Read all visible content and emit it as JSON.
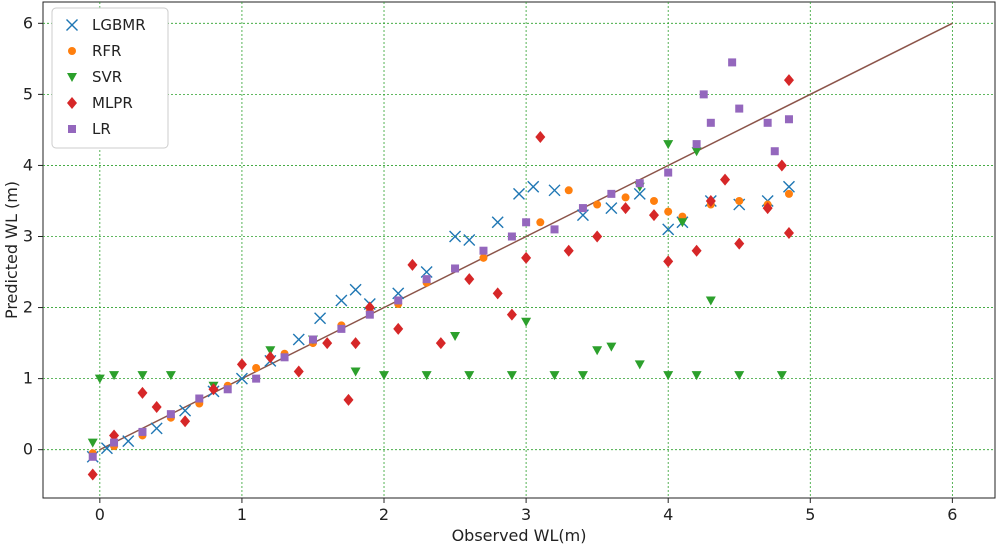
{
  "chart_data": {
    "type": "scatter",
    "title": "",
    "xlabel": "Observed WL(m)",
    "ylabel": "Predicted WL (m)",
    "xlim": [
      -0.4,
      6.3
    ],
    "ylim": [
      -0.68,
      6.3
    ],
    "xticks": [
      0,
      1,
      2,
      3,
      4,
      5,
      6
    ],
    "yticks": [
      0,
      1,
      2,
      3,
      4,
      5,
      6
    ],
    "grid": true,
    "grid_color": "#2ca02c",
    "legend_position": "top-left",
    "reference_line": {
      "from": [
        0,
        0
      ],
      "to": [
        6,
        6
      ],
      "color": "#8c564b"
    },
    "series": [
      {
        "name": "LGBMR",
        "marker": "x",
        "color": "#1f77b4",
        "points": [
          [
            -0.05,
            -0.1
          ],
          [
            0.05,
            0.02
          ],
          [
            0.2,
            0.12
          ],
          [
            0.4,
            0.3
          ],
          [
            0.6,
            0.55
          ],
          [
            0.8,
            0.82
          ],
          [
            1.0,
            1.0
          ],
          [
            1.2,
            1.25
          ],
          [
            1.4,
            1.55
          ],
          [
            1.55,
            1.85
          ],
          [
            1.7,
            2.1
          ],
          [
            1.8,
            2.25
          ],
          [
            1.9,
            2.05
          ],
          [
            2.1,
            2.2
          ],
          [
            2.3,
            2.5
          ],
          [
            2.5,
            3.0
          ],
          [
            2.6,
            2.95
          ],
          [
            2.8,
            3.2
          ],
          [
            2.95,
            3.6
          ],
          [
            3.05,
            3.7
          ],
          [
            3.2,
            3.65
          ],
          [
            3.4,
            3.3
          ],
          [
            3.6,
            3.4
          ],
          [
            3.8,
            3.6
          ],
          [
            4.0,
            3.1
          ],
          [
            4.1,
            3.2
          ],
          [
            4.3,
            3.5
          ],
          [
            4.5,
            3.45
          ],
          [
            4.7,
            3.5
          ],
          [
            4.85,
            3.7
          ]
        ]
      },
      {
        "name": "RFR",
        "marker": "circle",
        "color": "#ff7f0e",
        "points": [
          [
            -0.05,
            -0.05
          ],
          [
            0.1,
            0.05
          ],
          [
            0.3,
            0.2
          ],
          [
            0.5,
            0.45
          ],
          [
            0.7,
            0.65
          ],
          [
            0.9,
            0.9
          ],
          [
            1.1,
            1.15
          ],
          [
            1.3,
            1.35
          ],
          [
            1.5,
            1.5
          ],
          [
            1.7,
            1.75
          ],
          [
            1.9,
            1.95
          ],
          [
            2.1,
            2.05
          ],
          [
            2.3,
            2.35
          ],
          [
            2.5,
            2.55
          ],
          [
            2.7,
            2.7
          ],
          [
            2.9,
            3.0
          ],
          [
            3.1,
            3.2
          ],
          [
            3.3,
            3.65
          ],
          [
            3.5,
            3.45
          ],
          [
            3.7,
            3.55
          ],
          [
            3.9,
            3.5
          ],
          [
            4.0,
            3.35
          ],
          [
            4.1,
            3.28
          ],
          [
            4.3,
            3.45
          ],
          [
            4.5,
            3.5
          ],
          [
            4.7,
            3.45
          ],
          [
            4.85,
            3.6
          ]
        ]
      },
      {
        "name": "SVR",
        "marker": "triangle-down",
        "color": "#2ca02c",
        "points": [
          [
            -0.05,
            0.1
          ],
          [
            0.0,
            1.0
          ],
          [
            0.1,
            1.05
          ],
          [
            0.3,
            1.05
          ],
          [
            0.5,
            1.05
          ],
          [
            0.8,
            0.9
          ],
          [
            1.2,
            1.4
          ],
          [
            1.5,
            1.55
          ],
          [
            1.8,
            1.1
          ],
          [
            2.0,
            1.05
          ],
          [
            2.3,
            1.05
          ],
          [
            2.6,
            1.05
          ],
          [
            2.9,
            1.05
          ],
          [
            3.2,
            1.05
          ],
          [
            3.4,
            1.05
          ],
          [
            3.5,
            1.4
          ],
          [
            3.6,
            1.45
          ],
          [
            3.8,
            1.2
          ],
          [
            4.0,
            1.05
          ],
          [
            4.2,
            1.05
          ],
          [
            4.5,
            1.05
          ],
          [
            4.8,
            1.05
          ],
          [
            2.5,
            1.6
          ],
          [
            3.0,
            1.8
          ],
          [
            3.8,
            3.7
          ],
          [
            4.0,
            4.3
          ],
          [
            4.2,
            4.2
          ],
          [
            4.3,
            2.1
          ],
          [
            4.1,
            3.2
          ]
        ]
      },
      {
        "name": "MLPR",
        "marker": "diamond",
        "color": "#d62728",
        "points": [
          [
            -0.05,
            -0.35
          ],
          [
            0.1,
            0.2
          ],
          [
            0.3,
            0.8
          ],
          [
            0.4,
            0.6
          ],
          [
            0.6,
            0.4
          ],
          [
            0.8,
            0.85
          ],
          [
            1.0,
            1.2
          ],
          [
            1.2,
            1.3
          ],
          [
            1.4,
            1.1
          ],
          [
            1.6,
            1.5
          ],
          [
            1.75,
            0.7
          ],
          [
            1.8,
            1.5
          ],
          [
            1.9,
            2.0
          ],
          [
            2.1,
            1.7
          ],
          [
            2.2,
            2.6
          ],
          [
            2.4,
            1.5
          ],
          [
            2.6,
            2.4
          ],
          [
            2.8,
            2.2
          ],
          [
            2.9,
            1.9
          ],
          [
            3.0,
            2.7
          ],
          [
            3.1,
            4.4
          ],
          [
            3.3,
            2.8
          ],
          [
            3.5,
            3.0
          ],
          [
            3.7,
            3.4
          ],
          [
            3.9,
            3.3
          ],
          [
            4.0,
            2.65
          ],
          [
            4.2,
            2.8
          ],
          [
            4.3,
            3.5
          ],
          [
            4.4,
            3.8
          ],
          [
            4.5,
            2.9
          ],
          [
            4.7,
            3.4
          ],
          [
            4.85,
            3.05
          ],
          [
            4.85,
            5.2
          ],
          [
            4.8,
            4.0
          ]
        ]
      },
      {
        "name": "LR",
        "marker": "square",
        "color": "#9467bd",
        "points": [
          [
            -0.05,
            -0.1
          ],
          [
            0.1,
            0.1
          ],
          [
            0.3,
            0.25
          ],
          [
            0.5,
            0.5
          ],
          [
            0.7,
            0.72
          ],
          [
            0.9,
            0.85
          ],
          [
            1.1,
            1.0
          ],
          [
            1.3,
            1.3
          ],
          [
            1.5,
            1.55
          ],
          [
            1.7,
            1.7
          ],
          [
            1.9,
            1.9
          ],
          [
            2.1,
            2.1
          ],
          [
            2.3,
            2.4
          ],
          [
            2.5,
            2.55
          ],
          [
            2.7,
            2.8
          ],
          [
            2.9,
            3.0
          ],
          [
            3.0,
            3.2
          ],
          [
            3.2,
            3.1
          ],
          [
            3.4,
            3.4
          ],
          [
            3.6,
            3.6
          ],
          [
            3.8,
            3.75
          ],
          [
            4.0,
            3.9
          ],
          [
            4.2,
            4.3
          ],
          [
            4.25,
            5.0
          ],
          [
            4.3,
            4.6
          ],
          [
            4.45,
            5.45
          ],
          [
            4.5,
            4.8
          ],
          [
            4.7,
            4.6
          ],
          [
            4.85,
            4.65
          ],
          [
            4.75,
            4.2
          ]
        ]
      }
    ]
  }
}
